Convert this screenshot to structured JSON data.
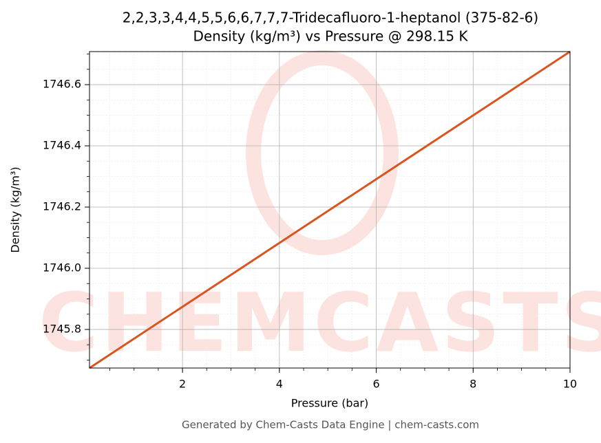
{
  "chart_data": {
    "type": "line",
    "title": "2,2,3,3,4,4,5,5,6,6,7,7,7-Tridecafluoro-1-heptanol (375-82-6)",
    "subtitle": "Density (kg/m³) vs Pressure @ 298.15 K",
    "x_label": "Pressure (bar)",
    "y_label": "Density (kg/m³)",
    "watermark": "CHEMCASTS",
    "footer": "Generated by Chem-Casts Data Engine | chem-casts.com",
    "x": [
      0.08,
      10
    ],
    "series": [
      {
        "name": "Density",
        "color": "#d9541e",
        "values": [
          1745.674,
          1746.708
        ]
      }
    ],
    "xlim": [
      0.08,
      10
    ],
    "xticks": [
      2,
      4,
      6,
      8,
      10
    ],
    "ylim": [
      1745.674,
      1746.708
    ],
    "yticks": [
      1745.8,
      {
        "value": 1746,
        "label": "1746.0"
      },
      1746.2,
      1746.4,
      1746.6
    ],
    "grid": true
  }
}
